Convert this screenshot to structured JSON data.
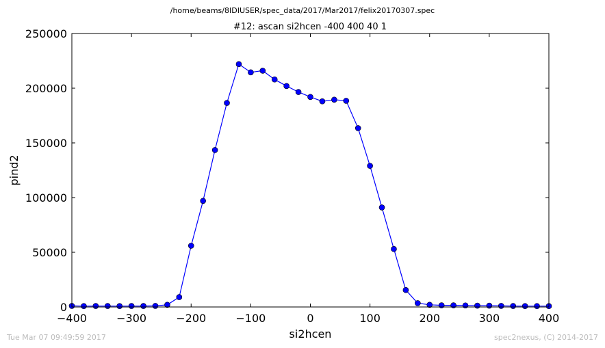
{
  "header": {
    "file_path": "/home/beams/8IDIUSER/spec_data/2017/Mar2017/felix20170307.spec"
  },
  "footer": {
    "timestamp": "Tue Mar 07 09:49:59 2017",
    "credit": "spec2nexus, (C) 2014-2017"
  },
  "chart_data": {
    "type": "line",
    "title": "#12: ascan  si2hcen -400 400  40 1",
    "xlabel": "si2hcen",
    "ylabel": "pind2",
    "xlim": [
      -400,
      400
    ],
    "ylim": [
      0,
      250000
    ],
    "xticks": [
      -400,
      -300,
      -200,
      -100,
      0,
      100,
      200,
      300,
      400
    ],
    "xtick_labels": [
      "−400",
      "−300",
      "−200",
      "−100",
      "0",
      "100",
      "200",
      "300",
      "400"
    ],
    "yticks": [
      0,
      50000,
      100000,
      150000,
      200000,
      250000
    ],
    "ytick_labels": [
      "0",
      "50000",
      "100000",
      "150000",
      "200000",
      "250000"
    ],
    "grid": false,
    "series": [
      {
        "color": "#0000ff",
        "marker": "circle",
        "x": [
          -400,
          -380,
          -360,
          -340,
          -320,
          -300,
          -280,
          -260,
          -240,
          -220,
          -200,
          -180,
          -160,
          -140,
          -120,
          -100,
          -80,
          -60,
          -40,
          -20,
          0,
          20,
          40,
          60,
          80,
          100,
          120,
          140,
          160,
          180,
          200,
          220,
          240,
          260,
          280,
          300,
          320,
          340,
          360,
          380,
          400
        ],
        "y": [
          1000,
          800,
          900,
          900,
          800,
          900,
          900,
          1000,
          2000,
          9000,
          56000,
          97000,
          143500,
          186500,
          222000,
          214500,
          216000,
          208000,
          202000,
          196500,
          192000,
          188000,
          189500,
          188500,
          163500,
          129000,
          91000,
          53000,
          15500,
          3500,
          2000,
          1500,
          1500,
          1400,
          1200,
          1200,
          1000,
          900,
          800,
          800,
          800
        ]
      }
    ]
  }
}
